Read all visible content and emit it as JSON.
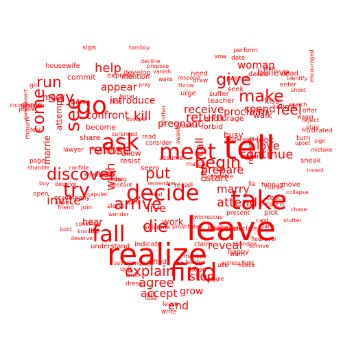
{
  "style": {
    "background": "#ffffff",
    "word_color": "#ff0000",
    "shape": "heart"
  },
  "words": [
    "leave",
    "realize",
    "tell",
    "take",
    "meet",
    "decide",
    "find",
    "fall",
    "go",
    "ask",
    "try",
    "give",
    "make",
    "arrive",
    "begin",
    "see",
    "discover",
    "explain",
    "die",
    "return",
    "run",
    "say",
    "come",
    "refuse",
    "invite",
    "continue",
    "feel",
    "put",
    "agree",
    "kill",
    "attend",
    "help",
    "live",
    "marry",
    "stop",
    "proclaim",
    "woman",
    "love",
    "prepare",
    "receive",
    "appear",
    "spend",
    "reveal",
    "confront",
    "end",
    "grow",
    "accept",
    "wish",
    "work",
    "marrie",
    "start",
    "pregnant",
    "introduce",
    "believe",
    "call",
    "hear",
    "rush",
    "busy",
    "one",
    "mock",
    "commit",
    "show",
    "develop",
    "express",
    "become",
    "look",
    "share",
    "attempt",
    "encourage",
    "forbid",
    "allow",
    "resist",
    "happy",
    "seem",
    "release",
    "kiss",
    "climb",
    "walk",
    "parent",
    "seek",
    "dance",
    "dead",
    "suffer",
    "teacher",
    "vow",
    "date",
    "perform",
    "need",
    "draw",
    "urge",
    "enter",
    "mention",
    "slips",
    "housewife",
    "writer",
    "place",
    "girl",
    "mourn",
    "open",
    "lawyer",
    "recover",
    "accompany",
    "life",
    "understand",
    "indicate",
    "gifted",
    "quit",
    "wait",
    "dress",
    "sit",
    "lose",
    "learn",
    "write",
    "hope",
    "leader",
    "claim",
    "repeat",
    "locate",
    "declare",
    "present",
    "nurse",
    "teach",
    "catch",
    "pick",
    "warn",
    "cast",
    "turn",
    "reject",
    "stay",
    "offer",
    "frustrated",
    "sneak",
    "move",
    "lie",
    "furious",
    "swear",
    "console",
    "recall",
    "match",
    "assume",
    "read",
    "consider",
    "ride",
    "confide",
    "keep",
    "beg",
    "buy",
    "alive",
    "join",
    "bold",
    "want",
    "alone",
    "welcome",
    "use",
    "twin",
    "prostitute",
    "friend",
    "convince",
    "deceive",
    "identify",
    "inconsolable",
    "sweetheart",
    "stumble",
    "page",
    "fear",
    "ferrar",
    "tomboy",
    "pray",
    "arrange",
    "save",
    "juggle",
    "actress",
    "abandon",
    "talk",
    "shoot",
    "encouraged",
    "wager",
    "replaceable",
    "respond",
    "throw",
    "fearful",
    "remember",
    "surprised",
    "reconcile",
    "emerge",
    "hesitant",
    "capulet",
    "wonder",
    "knock",
    "deserve",
    "wed",
    "awaken",
    "brother",
    "rescue",
    "manage",
    "fight",
    "survive",
    "flee",
    "travel",
    "stutter",
    "chase",
    "collapse",
    "invent",
    "mistake",
    "upset",
    "decline",
    "propose",
    "vanish",
    "wake",
    "escape",
    "ambitious",
    "notice",
    "plan",
    "search",
    "sign"
  ]
}
